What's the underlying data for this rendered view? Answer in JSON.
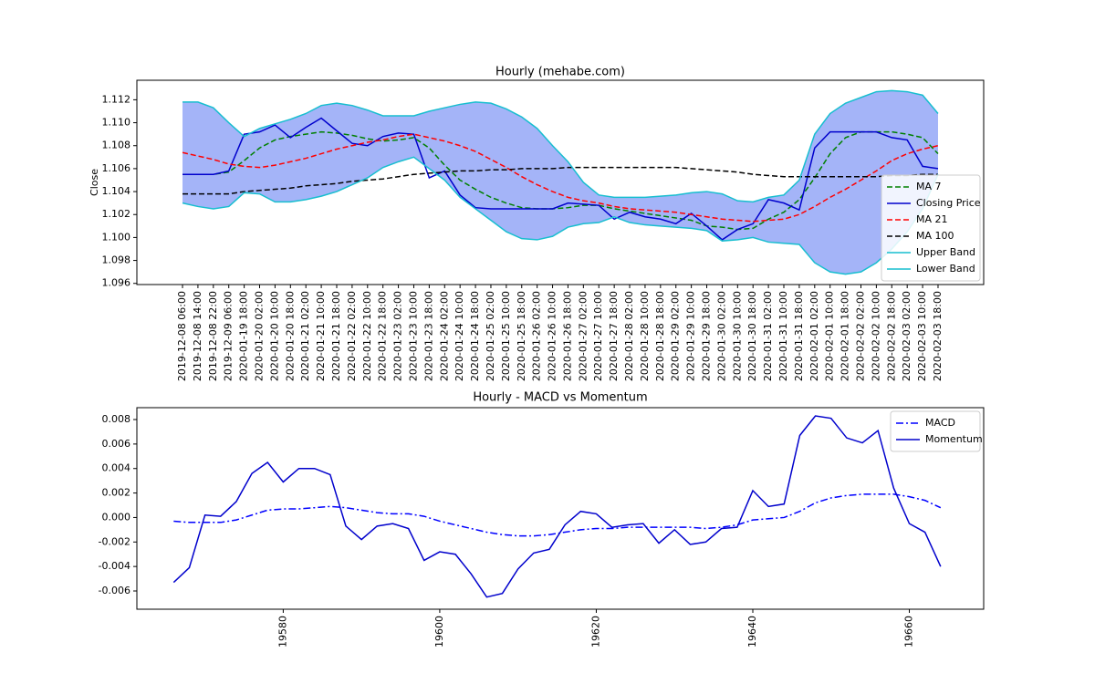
{
  "chart_data": [
    {
      "type": "line",
      "title": "Hourly (mehabe.com)",
      "ylabel": "Close",
      "categories": [
        "2019-12-08 06:00",
        "2019-12-08 14:00",
        "2019-12-08 22:00",
        "2019-12-09 06:00",
        "2020-01-19 18:00",
        "2020-01-20 02:00",
        "2020-01-20 10:00",
        "2020-01-20 18:00",
        "2020-01-21 02:00",
        "2020-01-21 10:00",
        "2020-01-21 18:00",
        "2020-01-22 02:00",
        "2020-01-22 10:00",
        "2020-01-22 18:00",
        "2020-01-23 02:00",
        "2020-01-23 10:00",
        "2020-01-23 18:00",
        "2020-01-24 02:00",
        "2020-01-24 10:00",
        "2020-01-24 18:00",
        "2020-01-25 02:00",
        "2020-01-25 10:00",
        "2020-01-25 18:00",
        "2020-01-26 02:00",
        "2020-01-26 10:00",
        "2020-01-26 18:00",
        "2020-01-27 02:00",
        "2020-01-27 10:00",
        "2020-01-27 18:00",
        "2020-01-28 02:00",
        "2020-01-28 10:00",
        "2020-01-28 18:00",
        "2020-01-29 02:00",
        "2020-01-29 10:00",
        "2020-01-29 18:00",
        "2020-01-30 02:00",
        "2020-01-30 10:00",
        "2020-01-30 18:00",
        "2020-01-31 02:00",
        "2020-01-31 10:00",
        "2020-01-31 18:00",
        "2020-02-01 02:00",
        "2020-02-01 10:00",
        "2020-02-01 18:00",
        "2020-02-02 02:00",
        "2020-02-02 10:00",
        "2020-02-02 18:00",
        "2020-02-03 02:00",
        "2020-02-03 10:00",
        "2020-02-03 18:00"
      ],
      "series": [
        {
          "name": "MA 7",
          "color": "#008000",
          "linestyle": "dashed",
          "values": [
            1.1055,
            1.1055,
            1.1055,
            1.1057,
            1.1067,
            1.1078,
            1.1085,
            1.1088,
            1.109,
            1.1092,
            1.1091,
            1.1089,
            1.1086,
            1.1084,
            1.1085,
            1.1087,
            1.1078,
            1.1063,
            1.105,
            1.1042,
            1.1035,
            1.103,
            1.1026,
            1.1025,
            1.1025,
            1.1026,
            1.1028,
            1.1028,
            1.1025,
            1.1023,
            1.1021,
            1.1019,
            1.1017,
            1.1015,
            1.101,
            1.1009,
            1.1007,
            1.1008,
            1.1016,
            1.1022,
            1.1033,
            1.1052,
            1.1073,
            1.1087,
            1.1092,
            1.1092,
            1.1092,
            1.109,
            1.1087,
            1.1073
          ]
        },
        {
          "name": "Closing Price",
          "color": "#0000cc",
          "linestyle": "solid",
          "values": [
            1.1055,
            1.1055,
            1.1055,
            1.1058,
            1.109,
            1.1092,
            1.1098,
            1.1087,
            1.1096,
            1.1104,
            1.1093,
            1.1082,
            1.108,
            1.1088,
            1.1091,
            1.109,
            1.1052,
            1.1058,
            1.1037,
            1.1026,
            1.1025,
            1.1025,
            1.1025,
            1.1025,
            1.1025,
            1.103,
            1.1029,
            1.1028,
            1.1016,
            1.1022,
            1.1018,
            1.1016,
            1.1012,
            1.1021,
            1.101,
            1.0998,
            1.1007,
            1.1012,
            1.1033,
            1.103,
            1.1024,
            1.1078,
            1.1092,
            1.1092,
            1.1092,
            1.1092,
            1.1087,
            1.1085,
            1.1062,
            1.106
          ]
        },
        {
          "name": "MA 21",
          "color": "#ff0000",
          "linestyle": "dashed",
          "values": [
            1.1074,
            1.1071,
            1.1068,
            1.1064,
            1.1062,
            1.1061,
            1.1063,
            1.1066,
            1.1069,
            1.1073,
            1.1077,
            1.108,
            1.1083,
            1.1085,
            1.1088,
            1.109,
            1.1087,
            1.1084,
            1.108,
            1.1075,
            1.1068,
            1.1061,
            1.1053,
            1.1046,
            1.104,
            1.1035,
            1.1032,
            1.103,
            1.1027,
            1.1025,
            1.1024,
            1.1023,
            1.1022,
            1.102,
            1.1018,
            1.1016,
            1.1015,
            1.1014,
            1.1015,
            1.1016,
            1.102,
            1.1027,
            1.1035,
            1.1042,
            1.105,
            1.1058,
            1.1067,
            1.1073,
            1.1077,
            1.108
          ]
        },
        {
          "name": "MA 100",
          "color": "#000000",
          "linestyle": "dashed",
          "values": [
            1.1038,
            1.1038,
            1.1038,
            1.1038,
            1.104,
            1.1041,
            1.1042,
            1.1043,
            1.1045,
            1.1046,
            1.1047,
            1.1049,
            1.105,
            1.1051,
            1.1053,
            1.1055,
            1.1056,
            1.1057,
            1.1058,
            1.1058,
            1.1059,
            1.1059,
            1.106,
            1.106,
            1.106,
            1.1061,
            1.1061,
            1.1061,
            1.1061,
            1.1061,
            1.1061,
            1.1061,
            1.1061,
            1.106,
            1.1059,
            1.1058,
            1.1057,
            1.1055,
            1.1054,
            1.1053,
            1.1053,
            1.1053,
            1.1053,
            1.1053,
            1.1053,
            1.1053,
            1.1054,
            1.1054,
            1.1055,
            1.1055
          ]
        },
        {
          "name": "Upper Band",
          "color": "#17becf",
          "linestyle": "solid",
          "values": [
            1.1118,
            1.1118,
            1.1113,
            1.11,
            1.1088,
            1.1095,
            1.1099,
            1.1103,
            1.1108,
            1.1115,
            1.1117,
            1.1115,
            1.1111,
            1.1106,
            1.1106,
            1.1106,
            1.111,
            1.1113,
            1.1116,
            1.1118,
            1.1117,
            1.1112,
            1.1105,
            1.1095,
            1.108,
            1.1066,
            1.1048,
            1.1037,
            1.1035,
            1.1035,
            1.1035,
            1.1036,
            1.1037,
            1.1039,
            1.104,
            1.1038,
            1.1032,
            1.1031,
            1.1035,
            1.1037,
            1.105,
            1.109,
            1.1108,
            1.1117,
            1.1122,
            1.1127,
            1.1128,
            1.1127,
            1.1124,
            1.1108
          ]
        },
        {
          "name": "Lower Band",
          "color": "#17becf",
          "linestyle": "solid",
          "values": [
            1.103,
            1.1027,
            1.1025,
            1.1027,
            1.1039,
            1.1038,
            1.1031,
            1.1031,
            1.1033,
            1.1036,
            1.104,
            1.1046,
            1.1052,
            1.1061,
            1.1066,
            1.107,
            1.106,
            1.105,
            1.1035,
            1.1025,
            1.1015,
            1.1005,
            1.0999,
            1.0998,
            1.1001,
            1.1009,
            1.1012,
            1.1013,
            1.1018,
            1.1013,
            1.1011,
            1.101,
            1.1009,
            1.1008,
            1.1006,
            1.0997,
            1.0998,
            1.1,
            1.0996,
            1.0995,
            1.0994,
            1.0978,
            1.097,
            1.0968,
            1.097,
            1.0978,
            1.099,
            1.1005,
            1.1025,
            1.1055
          ]
        }
      ],
      "band_fill": "#a4b4f8",
      "ylim": [
        1.0959,
        1.1137
      ],
      "yticks": [
        1.096,
        1.098,
        {
          "value": 1.1,
          "label": "1.100"
        },
        1.102,
        1.104,
        1.106,
        1.108,
        {
          "value": 1.11,
          "label": "1.110"
        },
        1.112
      ],
      "legend": "lower right"
    },
    {
      "type": "line",
      "title": "Hourly - MACD vs Momentum",
      "x": [
        19566,
        19568,
        19570,
        19572,
        19574,
        19576,
        19578,
        19580,
        19582,
        19584,
        19586,
        19588,
        19590,
        19592,
        19594,
        19596,
        19598,
        19600,
        19602,
        19604,
        19606,
        19608,
        19610,
        19612,
        19614,
        19616,
        19618,
        19620,
        19622,
        19624,
        19626,
        19628,
        19630,
        19632,
        19634,
        19636,
        19638,
        19640,
        19642,
        19644,
        19646,
        19648,
        19650,
        19652,
        19654,
        19656,
        19658,
        19660,
        19662,
        19664
      ],
      "series": [
        {
          "name": "MACD",
          "color": "#0000ff",
          "linestyle": "dashdot",
          "values": [
            -0.0003,
            -0.0004,
            -0.0004,
            -0.0004,
            -0.0002,
            0.0002,
            0.0006,
            0.0007,
            0.0007,
            0.0008,
            0.0009,
            0.0008,
            0.0006,
            0.0004,
            0.0003,
            0.0003,
            0.0001,
            -0.0003,
            -0.0006,
            -0.0009,
            -0.0012,
            -0.0014,
            -0.0015,
            -0.0015,
            -0.0014,
            -0.0012,
            -0.001,
            -0.0009,
            -0.0009,
            -0.0008,
            -0.0008,
            -0.0008,
            -0.0008,
            -0.0008,
            -0.0009,
            -0.0008,
            -0.0006,
            -0.0002,
            -0.0001,
            0.0,
            0.0005,
            0.0012,
            0.0016,
            0.0018,
            0.0019,
            0.0019,
            0.0019,
            0.0017,
            0.0014,
            0.0008
          ]
        },
        {
          "name": "Momentum",
          "color": "#0000cc",
          "linestyle": "solid",
          "values": [
            -0.0053,
            -0.0041,
            0.0002,
            0.0001,
            0.0013,
            0.0036,
            0.0045,
            0.0029,
            0.004,
            0.004,
            0.0035,
            -0.0007,
            -0.0018,
            -0.0007,
            -0.0005,
            -0.0009,
            -0.0035,
            -0.0028,
            -0.003,
            -0.0046,
            -0.0065,
            -0.0062,
            -0.0042,
            -0.0029,
            -0.0026,
            -0.0006,
            0.0005,
            0.0003,
            -0.0008,
            -0.0006,
            -0.0005,
            -0.0021,
            -0.001,
            -0.0022,
            -0.002,
            -0.0009,
            -0.0008,
            0.0022,
            0.0009,
            0.0011,
            0.0067,
            0.0083,
            0.0081,
            0.0065,
            0.0061,
            0.0071,
            0.0024,
            -0.0005,
            -0.0012,
            -0.004
          ]
        }
      ],
      "xlim": [
        19561.3,
        19669.5
      ],
      "xticks": [
        19580,
        19600,
        19620,
        19640,
        19660
      ],
      "ylim": [
        -0.00749,
        0.00897
      ],
      "yticks": [
        -0.006,
        -0.004,
        -0.002,
        {
          "value": 0,
          "label": "0.000"
        },
        0.002,
        0.004,
        0.006,
        0.008
      ],
      "legend": "upper right"
    }
  ]
}
